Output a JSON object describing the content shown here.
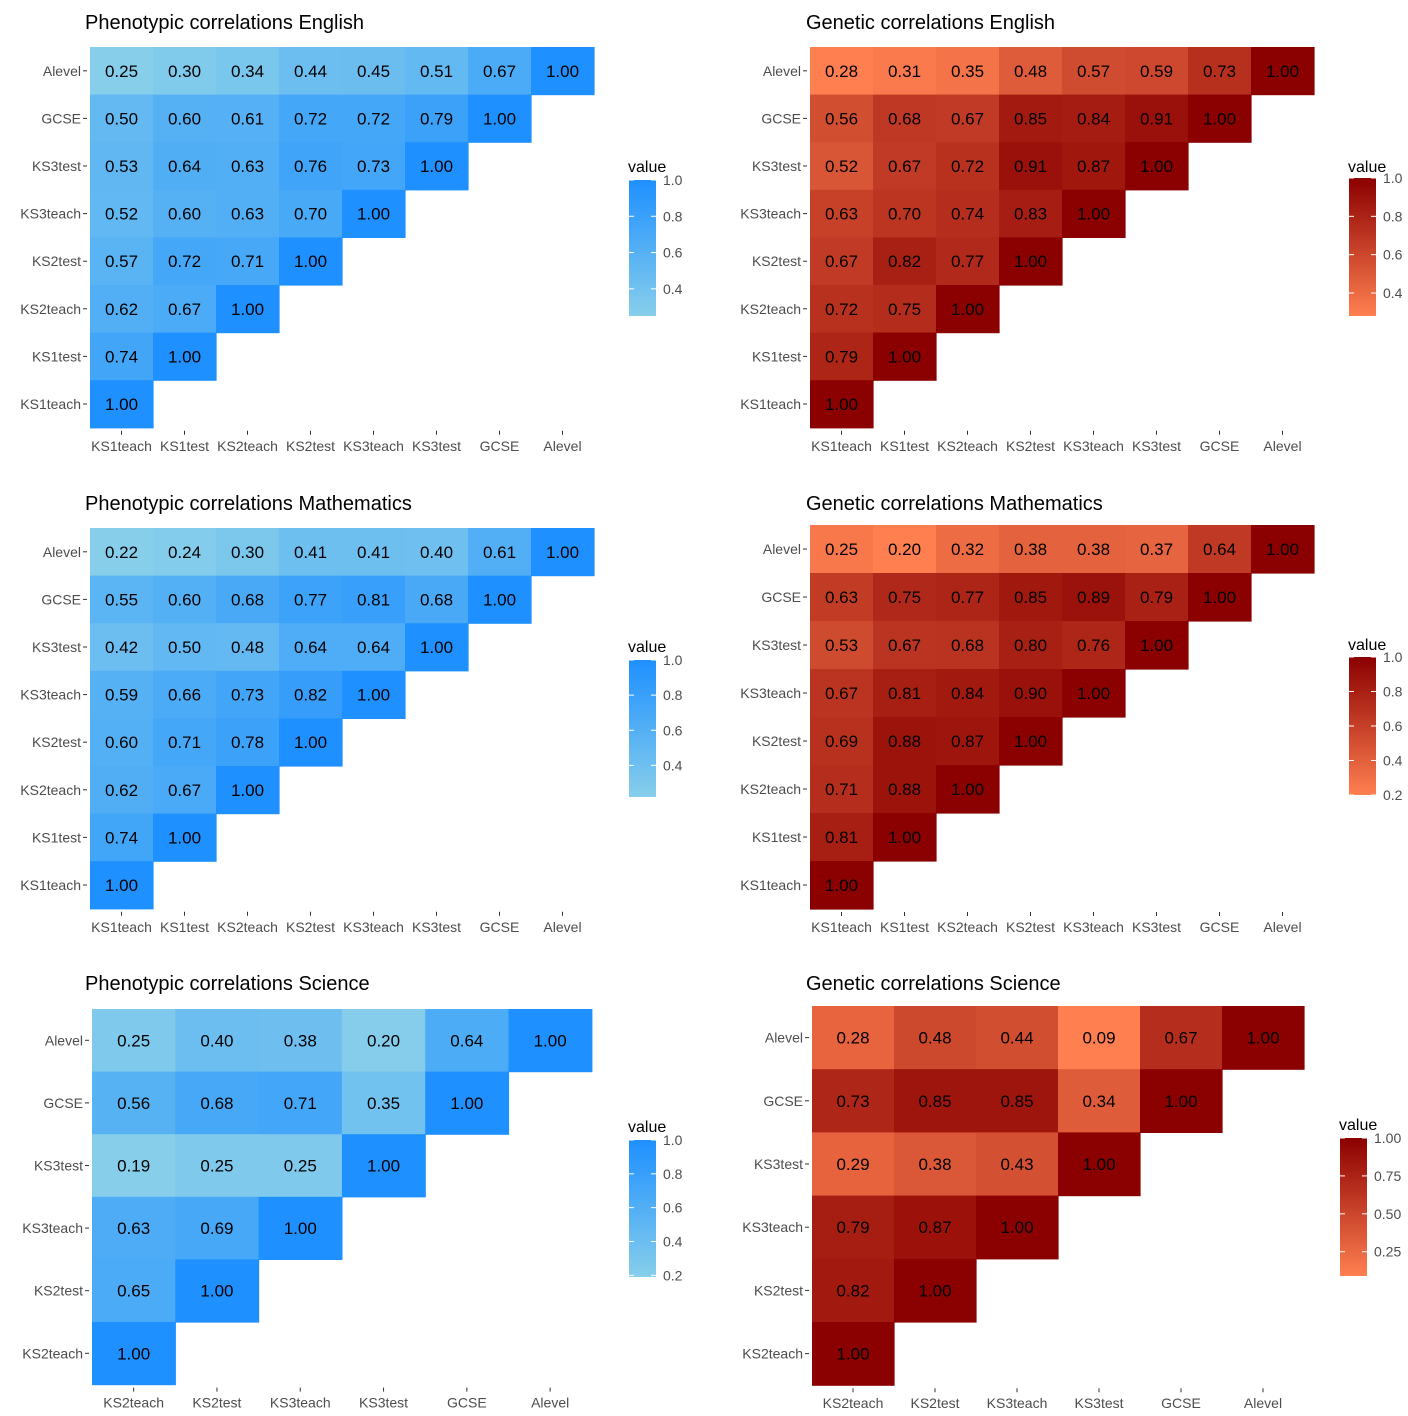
{
  "chart_data": [
    {
      "type": "heatmap",
      "title": "Phenotypic correlations English",
      "palette": "blue",
      "x": [
        "KS1teach",
        "KS1test",
        "KS2teach",
        "KS2test",
        "KS3teach",
        "KS3test",
        "GCSE",
        "Alevel"
      ],
      "y": [
        "Alevel",
        "GCSE",
        "KS3test",
        "KS3teach",
        "KS2test",
        "KS2teach",
        "KS1test",
        "KS1teach"
      ],
      "values": [
        [
          0.25,
          0.3,
          0.34,
          0.44,
          0.45,
          0.51,
          0.67,
          1.0
        ],
        [
          0.5,
          0.6,
          0.61,
          0.72,
          0.72,
          0.79,
          1.0
        ],
        [
          0.53,
          0.64,
          0.63,
          0.76,
          0.73,
          1.0
        ],
        [
          0.52,
          0.6,
          0.63,
          0.7,
          1.0
        ],
        [
          0.57,
          0.72,
          0.71,
          1.0
        ],
        [
          0.62,
          0.67,
          1.0
        ],
        [
          0.74,
          1.0
        ],
        [
          1.0
        ]
      ],
      "legend": {
        "title": "value",
        "range": [
          0.25,
          1.0
        ],
        "ticks": [
          "0.4",
          "0.6",
          "0.8",
          "1.0"
        ],
        "tick_values": [
          0.4,
          0.6,
          0.8,
          1.0
        ]
      }
    },
    {
      "type": "heatmap",
      "title": "Genetic correlations English",
      "palette": "red",
      "x": [
        "KS1teach",
        "KS1test",
        "KS2teach",
        "KS2test",
        "KS3teach",
        "KS3test",
        "GCSE",
        "Alevel"
      ],
      "y": [
        "Alevel",
        "GCSE",
        "KS3test",
        "KS3teach",
        "KS2test",
        "KS2teach",
        "KS1test",
        "KS1teach"
      ],
      "values": [
        [
          0.28,
          0.31,
          0.35,
          0.48,
          0.57,
          0.59,
          0.73,
          1.0
        ],
        [
          0.56,
          0.68,
          0.67,
          0.85,
          0.84,
          0.91,
          1.0
        ],
        [
          0.52,
          0.67,
          0.72,
          0.91,
          0.87,
          1.0
        ],
        [
          0.63,
          0.7,
          0.74,
          0.83,
          1.0
        ],
        [
          0.67,
          0.82,
          0.77,
          1.0
        ],
        [
          0.72,
          0.75,
          1.0
        ],
        [
          0.79,
          1.0
        ],
        [
          1.0
        ]
      ],
      "legend": {
        "title": "value",
        "range": [
          0.28,
          1.0
        ],
        "ticks": [
          "0.4",
          "0.6",
          "0.8",
          "1.0"
        ],
        "tick_values": [
          0.4,
          0.6,
          0.8,
          1.0
        ]
      }
    },
    {
      "type": "heatmap",
      "title": "Phenotypic correlations Mathematics",
      "palette": "blue",
      "x": [
        "KS1teach",
        "KS1test",
        "KS2teach",
        "KS2test",
        "KS3teach",
        "KS3test",
        "GCSE",
        "Alevel"
      ],
      "y": [
        "Alevel",
        "GCSE",
        "KS3test",
        "KS3teach",
        "KS2test",
        "KS2teach",
        "KS1test",
        "KS1teach"
      ],
      "values": [
        [
          0.22,
          0.24,
          0.3,
          0.41,
          0.41,
          0.4,
          0.61,
          1.0
        ],
        [
          0.55,
          0.6,
          0.68,
          0.77,
          0.81,
          0.68,
          1.0
        ],
        [
          0.42,
          0.5,
          0.48,
          0.64,
          0.64,
          1.0
        ],
        [
          0.59,
          0.66,
          0.73,
          0.82,
          1.0
        ],
        [
          0.6,
          0.71,
          0.78,
          1.0
        ],
        [
          0.62,
          0.67,
          1.0
        ],
        [
          0.74,
          1.0
        ],
        [
          1.0
        ]
      ],
      "legend": {
        "title": "value",
        "range": [
          0.22,
          1.0
        ],
        "ticks": [
          "0.4",
          "0.6",
          "0.8",
          "1.0"
        ],
        "tick_values": [
          0.4,
          0.6,
          0.8,
          1.0
        ]
      }
    },
    {
      "type": "heatmap",
      "title": "Genetic correlations Mathematics",
      "palette": "red",
      "x": [
        "KS1teach",
        "KS1test",
        "KS2teach",
        "KS2test",
        "KS3teach",
        "KS3test",
        "GCSE",
        "Alevel"
      ],
      "y": [
        "Alevel",
        "GCSE",
        "KS3test",
        "KS3teach",
        "KS2test",
        "KS2teach",
        "KS1test",
        "KS1teach"
      ],
      "values": [
        [
          0.25,
          0.2,
          0.32,
          0.38,
          0.38,
          0.37,
          0.64,
          1.0
        ],
        [
          0.63,
          0.75,
          0.77,
          0.85,
          0.89,
          0.79,
          1.0
        ],
        [
          0.53,
          0.67,
          0.68,
          0.8,
          0.76,
          1.0
        ],
        [
          0.67,
          0.81,
          0.84,
          0.9,
          1.0
        ],
        [
          0.69,
          0.88,
          0.87,
          1.0
        ],
        [
          0.71,
          0.88,
          1.0
        ],
        [
          0.81,
          1.0
        ],
        [
          1.0
        ]
      ],
      "legend": {
        "title": "value",
        "range": [
          0.2,
          1.0
        ],
        "ticks": [
          "0.2",
          "0.4",
          "0.6",
          "0.8",
          "1.0"
        ],
        "tick_values": [
          0.2,
          0.4,
          0.6,
          0.8,
          1.0
        ]
      }
    },
    {
      "type": "heatmap",
      "title": "Phenotypic correlations Science",
      "palette": "blue",
      "x": [
        "KS2teach",
        "KS2test",
        "KS3teach",
        "KS3test",
        "GCSE",
        "Alevel"
      ],
      "y": [
        "Alevel",
        "GCSE",
        "KS3test",
        "KS3teach",
        "KS2test",
        "KS2teach"
      ],
      "values": [
        [
          0.25,
          0.4,
          0.38,
          0.2,
          0.64,
          1.0
        ],
        [
          0.56,
          0.68,
          0.71,
          0.35,
          1.0
        ],
        [
          0.19,
          0.25,
          0.25,
          1.0
        ],
        [
          0.63,
          0.69,
          1.0
        ],
        [
          0.65,
          1.0
        ],
        [
          1.0
        ]
      ],
      "legend": {
        "title": "value",
        "range": [
          0.19,
          1.0
        ],
        "ticks": [
          "0.2",
          "0.4",
          "0.6",
          "0.8",
          "1.0"
        ],
        "tick_values": [
          0.2,
          0.4,
          0.6,
          0.8,
          1.0
        ]
      }
    },
    {
      "type": "heatmap",
      "title": "Genetic correlations Science",
      "palette": "red",
      "x": [
        "KS2teach",
        "KS2test",
        "KS3teach",
        "KS3test",
        "GCSE",
        "Alevel"
      ],
      "y": [
        "Alevel",
        "GCSE",
        "KS3test",
        "KS3teach",
        "KS2test",
        "KS2teach"
      ],
      "values": [
        [
          0.28,
          0.48,
          0.44,
          0.09,
          0.67,
          1.0
        ],
        [
          0.73,
          0.85,
          0.85,
          0.34,
          1.0
        ],
        [
          0.29,
          0.38,
          0.43,
          1.0
        ],
        [
          0.79,
          0.87,
          1.0
        ],
        [
          0.82,
          1.0
        ],
        [
          1.0
        ]
      ],
      "legend": {
        "title": "value",
        "range": [
          0.09,
          1.0
        ],
        "ticks": [
          "0.25",
          "0.50",
          "0.75",
          "1.00"
        ],
        "tick_values": [
          0.25,
          0.5,
          0.75,
          1.0
        ]
      }
    }
  ]
}
